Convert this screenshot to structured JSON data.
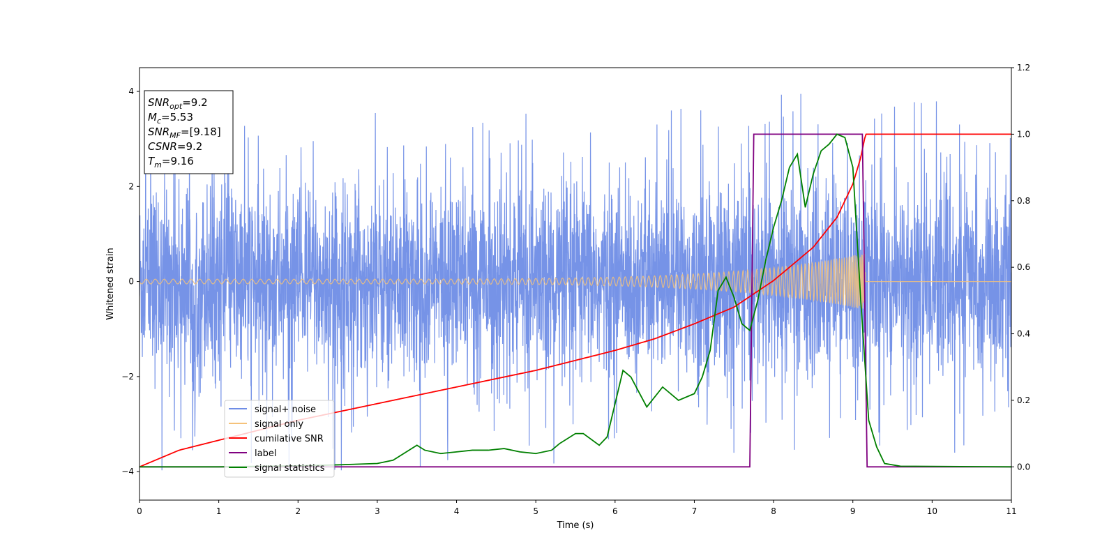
{
  "chart_data": {
    "type": "line",
    "xlabel": "Time (s)",
    "ylabel": "Whitened strain",
    "xlim": [
      0,
      11
    ],
    "ylim": [
      -4.6,
      4.5
    ],
    "y2lim": [
      -0.1,
      1.2
    ],
    "grid": false,
    "x_ticks": [
      0,
      1,
      2,
      3,
      4,
      5,
      6,
      7,
      8,
      9,
      10,
      11
    ],
    "y_ticks": [
      -4,
      -2,
      0,
      2,
      4
    ],
    "y_tick_labels": [
      "−4",
      "−2",
      "0",
      "2",
      "4"
    ],
    "y2_ticks": [
      0.0,
      0.2,
      0.4,
      0.6,
      0.8,
      1.0,
      1.2
    ],
    "y2_tick_labels": [
      "0.0",
      "0.2",
      "0.4",
      "0.6",
      "0.8",
      "1.0",
      "1.2"
    ],
    "legend": {
      "placement": "lower-left",
      "entries": [
        "signal+ noise",
        "signal only",
        "cumilative SNR",
        "label",
        "signal statistics"
      ]
    },
    "annotation": {
      "lines": [
        {
          "sym": "SNR",
          "sub": "opt",
          "value": "=9.2"
        },
        {
          "sym": "M",
          "sub": "c",
          "value": "=5.53"
        },
        {
          "sym": "SNR",
          "sub": "MF",
          "value": "=[9.18]"
        },
        {
          "sym": "CSNR",
          "sub": "",
          "value": "=9.2"
        },
        {
          "sym": "T",
          "sub": "m",
          "value": "=9.16"
        }
      ]
    },
    "series": [
      {
        "name": "signal+ noise",
        "axis": "left",
        "color": "#6f8de6",
        "description_range": "noise band roughly ±1.5, peaks to about ±4",
        "envelope_x": [
          0,
          11
        ],
        "envelope_y": [
          -1.6,
          1.6
        ],
        "spike_max": [
          4.05,
          -4.0
        ]
      },
      {
        "name": "signal only",
        "axis": "left",
        "color": "#f5c27a",
        "chirp_start": 0,
        "chirp_end": 9.16,
        "amp_start": 0.05,
        "amp_end": 0.6
      },
      {
        "name": "cumilative SNR",
        "axis": "right",
        "color": "#ff0000",
        "x": [
          0.0,
          0.5,
          1.0,
          1.5,
          2.0,
          2.5,
          3.0,
          3.5,
          4.0,
          4.5,
          5.0,
          5.5,
          6.0,
          6.5,
          7.0,
          7.5,
          8.0,
          8.5,
          8.8,
          9.0,
          9.1,
          9.16,
          11.0
        ],
        "y": [
          0.0,
          0.05,
          0.08,
          0.11,
          0.14,
          0.165,
          0.19,
          0.215,
          0.24,
          0.265,
          0.29,
          0.32,
          0.35,
          0.385,
          0.43,
          0.48,
          0.56,
          0.66,
          0.75,
          0.85,
          0.93,
          1.0,
          1.0
        ]
      },
      {
        "name": "label",
        "axis": "right",
        "color": "#800080",
        "x": [
          0.0,
          7.7,
          7.75,
          9.12,
          9.18,
          11.0
        ],
        "y": [
          0.0,
          0.0,
          1.0,
          1.0,
          0.0,
          0.0
        ]
      },
      {
        "name": "signal statistics",
        "axis": "right",
        "color": "#008000",
        "x": [
          0.0,
          1.0,
          2.0,
          2.5,
          3.0,
          3.2,
          3.4,
          3.5,
          3.6,
          3.8,
          4.0,
          4.2,
          4.4,
          4.6,
          4.8,
          5.0,
          5.2,
          5.3,
          5.5,
          5.6,
          5.8,
          5.9,
          6.0,
          6.1,
          6.2,
          6.4,
          6.6,
          6.8,
          7.0,
          7.1,
          7.2,
          7.3,
          7.4,
          7.5,
          7.6,
          7.7,
          7.8,
          7.9,
          8.0,
          8.1,
          8.2,
          8.3,
          8.4,
          8.5,
          8.6,
          8.7,
          8.8,
          8.9,
          9.0,
          9.1,
          9.2,
          9.3,
          9.4,
          9.6,
          11.0
        ],
        "y": [
          0.0,
          0.0,
          0.003,
          0.006,
          0.01,
          0.02,
          0.05,
          0.065,
          0.05,
          0.04,
          0.045,
          0.05,
          0.05,
          0.055,
          0.045,
          0.04,
          0.05,
          0.07,
          0.1,
          0.1,
          0.065,
          0.09,
          0.19,
          0.29,
          0.27,
          0.18,
          0.24,
          0.2,
          0.22,
          0.27,
          0.35,
          0.53,
          0.57,
          0.51,
          0.43,
          0.41,
          0.5,
          0.62,
          0.72,
          0.8,
          0.9,
          0.94,
          0.78,
          0.88,
          0.95,
          0.97,
          1.0,
          0.99,
          0.9,
          0.5,
          0.14,
          0.06,
          0.01,
          0.002,
          0.0
        ]
      }
    ]
  }
}
